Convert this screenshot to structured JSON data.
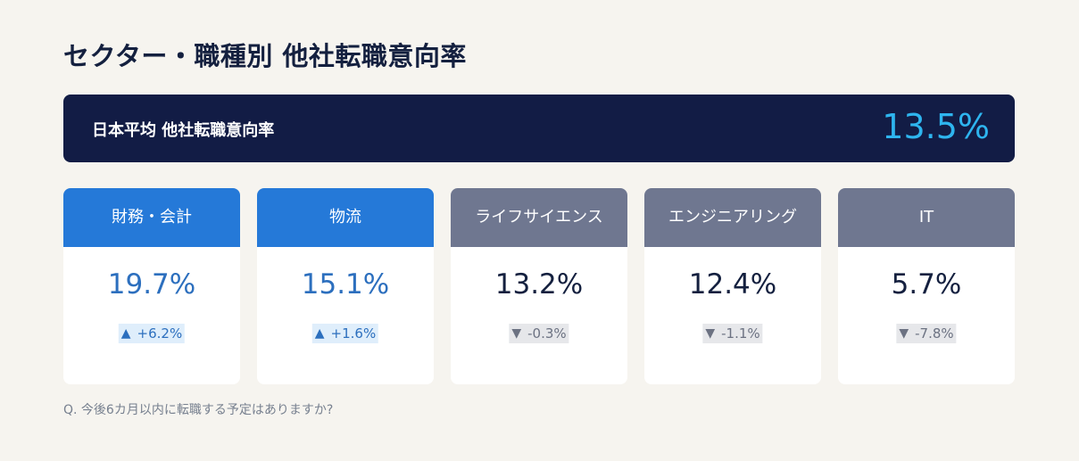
{
  "title": "セクター・職種別 他社転職意向率",
  "average": {
    "label": "日本平均 他社転職意向率",
    "value": "13.5%"
  },
  "chart_data": {
    "type": "bar",
    "title": "セクター・職種別 他社転職意向率",
    "categories": [
      "財務・会計",
      "物流",
      "ライフサイエンス",
      "エンジニアリング",
      "IT"
    ],
    "values": [
      19.7,
      15.1,
      13.2,
      12.4,
      5.7
    ],
    "value_labels": [
      "19.7%",
      "15.1%",
      "13.2%",
      "12.4%",
      "5.7%"
    ],
    "changes": [
      6.2,
      1.6,
      -0.3,
      -1.1,
      -7.8
    ],
    "change_labels": [
      "+6.2%",
      "+1.6%",
      "-0.3%",
      "-1.1%",
      "-7.8%"
    ],
    "reference": {
      "label": "日本平均 他社転職意向率",
      "value": 13.5
    }
  },
  "arrows": {
    "up": "▲",
    "down": "▼"
  },
  "colors": {
    "above_average_header": "#2579d8",
    "above_average_value": "#2c6fbe",
    "above_average_badge_bg": "#dfeefb",
    "below_average_header": "#6f7790",
    "below_average_value": "#14203f",
    "below_average_badge_bg": "#e6e7ea",
    "below_average_badge_text": "#6c7282",
    "banner_bg": "#121c45",
    "banner_value": "#2eb5ef"
  },
  "footnote": "Q. 今後6カ月以内に転職する予定はありますか?"
}
